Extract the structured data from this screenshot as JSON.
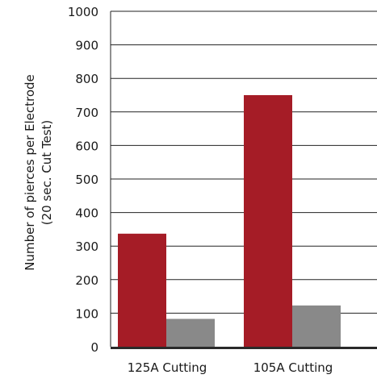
{
  "chart_data": {
    "type": "bar",
    "title": "",
    "xlabel": "",
    "ylabel_line1": "Number of pierces per Electrode",
    "ylabel_line2": "(20 sec. Cut Test)",
    "categories": [
      "125A Cutting",
      "105A Cutting"
    ],
    "series": [
      {
        "color": "#a51c26",
        "values": [
          337,
          750
        ]
      },
      {
        "color": "#898989",
        "values": [
          83,
          123
        ]
      }
    ],
    "ylim": [
      0,
      1000
    ],
    "yticks": [
      0,
      100,
      200,
      300,
      400,
      500,
      600,
      700,
      800,
      900,
      1000
    ],
    "grid": "horizontal",
    "legend": "none"
  }
}
